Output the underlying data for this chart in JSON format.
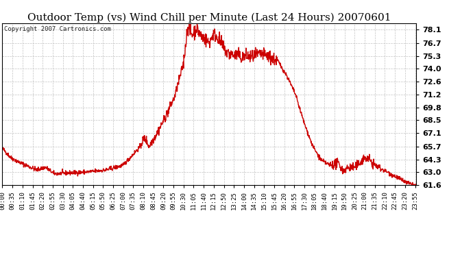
{
  "title": "Outdoor Temp (vs) Wind Chill per Minute (Last 24 Hours) 20070601",
  "copyright_text": "Copyright 2007 Cartronics.com",
  "line_color": "#cc0000",
  "background_color": "#ffffff",
  "plot_bg_color": "#ffffff",
  "grid_color": "#bbbbbb",
  "ylim": [
    61.6,
    78.8
  ],
  "yticks": [
    61.6,
    63.0,
    64.3,
    65.7,
    67.1,
    68.5,
    69.8,
    71.2,
    72.6,
    74.0,
    75.3,
    76.7,
    78.1
  ],
  "xtick_labels": [
    "00:00",
    "00:35",
    "01:10",
    "01:45",
    "02:20",
    "02:55",
    "03:30",
    "04:05",
    "04:40",
    "05:15",
    "05:50",
    "06:25",
    "07:00",
    "07:35",
    "08:10",
    "08:45",
    "09:20",
    "09:55",
    "10:30",
    "11:05",
    "11:40",
    "12:15",
    "12:50",
    "13:25",
    "14:00",
    "14:35",
    "15:10",
    "15:45",
    "16:20",
    "16:55",
    "17:30",
    "18:05",
    "18:40",
    "19:15",
    "19:50",
    "20:25",
    "21:00",
    "21:35",
    "22:10",
    "22:45",
    "23:20",
    "23:55"
  ],
  "title_fontsize": 11,
  "copyright_fontsize": 6.5,
  "tick_fontsize": 6.5,
  "ytick_fontsize": 8,
  "line_width": 1.0
}
